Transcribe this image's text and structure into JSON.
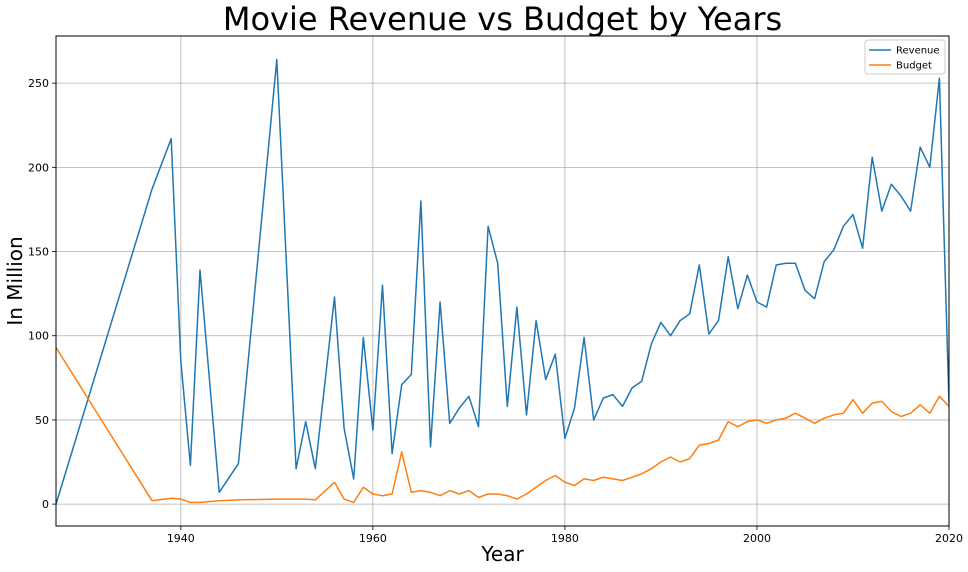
{
  "chart_data": {
    "type": "line",
    "title": "Movie Revenue vs Budget by Years",
    "xlabel": "Year",
    "ylabel": "In Million",
    "xlim": [
      1927,
      2020
    ],
    "ylim": [
      -13,
      278
    ],
    "xticks": [
      1940,
      1960,
      1980,
      2000,
      2020
    ],
    "yticks": [
      0,
      50,
      100,
      150,
      200,
      250
    ],
    "grid": true,
    "legend_position": "top-right",
    "series": [
      {
        "name": "Revenue",
        "color": "#1f77b4",
        "x": [
          1927,
          1937,
          1939,
          1940,
          1941,
          1942,
          1944,
          1946,
          1950,
          1952,
          1953,
          1954,
          1956,
          1957,
          1958,
          1959,
          1960,
          1961,
          1962,
          1963,
          1964,
          1965,
          1966,
          1967,
          1968,
          1969,
          1970,
          1971,
          1972,
          1973,
          1974,
          1975,
          1976,
          1977,
          1978,
          1979,
          1980,
          1981,
          1982,
          1983,
          1984,
          1985,
          1986,
          1987,
          1988,
          1989,
          1990,
          1991,
          1992,
          1993,
          1994,
          1995,
          1996,
          1997,
          1998,
          1999,
          2000,
          2001,
          2002,
          2003,
          2004,
          2005,
          2006,
          2007,
          2008,
          2009,
          2010,
          2011,
          2012,
          2013,
          2014,
          2015,
          2016,
          2017,
          2018,
          2019,
          2020
        ],
        "y": [
          0,
          187,
          217,
          85,
          23,
          139,
          7,
          24,
          264,
          21,
          49,
          21,
          123,
          45,
          15,
          99,
          44,
          130,
          30,
          71,
          77,
          180,
          34,
          120,
          48,
          57,
          64,
          46,
          165,
          143,
          58,
          117,
          53,
          109,
          74,
          89,
          39,
          57,
          99,
          50,
          63,
          65,
          58,
          69,
          73,
          95,
          108,
          100,
          109,
          113,
          142,
          101,
          109,
          147,
          116,
          136,
          120,
          117,
          142,
          143,
          143,
          127,
          122,
          144,
          151,
          165,
          172,
          152,
          206,
          174,
          190,
          183,
          174,
          212,
          200,
          253,
          60
        ]
      },
      {
        "name": "Budget",
        "color": "#ff7f0e",
        "x": [
          1927,
          1937,
          1939,
          1940,
          1941,
          1942,
          1944,
          1946,
          1950,
          1952,
          1953,
          1954,
          1956,
          1957,
          1958,
          1959,
          1960,
          1961,
          1962,
          1963,
          1964,
          1965,
          1966,
          1967,
          1968,
          1969,
          1970,
          1971,
          1972,
          1973,
          1974,
          1975,
          1976,
          1977,
          1978,
          1979,
          1980,
          1981,
          1982,
          1983,
          1984,
          1985,
          1986,
          1987,
          1988,
          1989,
          1990,
          1991,
          1992,
          1993,
          1994,
          1995,
          1996,
          1997,
          1998,
          1999,
          2000,
          2001,
          2002,
          2003,
          2004,
          2005,
          2006,
          2007,
          2008,
          2009,
          2010,
          2011,
          2012,
          2013,
          2014,
          2015,
          2016,
          2017,
          2018,
          2019,
          2020
        ],
        "y": [
          93,
          2,
          3.5,
          3,
          1,
          1,
          2,
          2.5,
          3,
          3,
          3,
          2.5,
          13,
          3,
          1,
          10,
          6,
          5,
          6,
          31,
          7,
          8,
          7,
          5,
          8,
          6,
          8,
          4,
          6,
          6,
          5,
          3,
          6,
          10,
          14,
          17,
          13,
          11,
          15,
          14,
          16,
          15,
          14,
          16,
          18,
          21,
          25,
          28,
          25,
          27,
          35,
          36,
          38,
          49,
          46,
          49,
          50,
          48,
          50,
          51,
          54,
          51,
          48,
          51,
          53,
          54,
          62,
          54,
          60,
          61,
          55,
          52,
          54,
          59,
          54,
          64,
          58
        ]
      }
    ]
  }
}
